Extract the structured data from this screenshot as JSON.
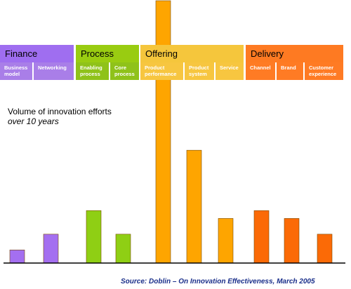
{
  "chart_data": {
    "type": "bar",
    "groups": [
      {
        "name": "Finance",
        "color": "#9f6ef0",
        "subcolor": "#a97ee8",
        "categories": [
          {
            "label": "Business model",
            "value": 5
          },
          {
            "label": "Networking",
            "value": 11
          }
        ]
      },
      {
        "name": "Process",
        "color": "#99cc11",
        "subcolor": "#8fc21a",
        "categories": [
          {
            "label": "Enabling process",
            "value": 20
          },
          {
            "label": "Core process",
            "value": 11
          }
        ]
      },
      {
        "name": "Offering",
        "color": "#f5c63c",
        "subcolor": "#f7c640",
        "categories": [
          {
            "label": "Product performance",
            "value": 100
          },
          {
            "label": "Product system",
            "value": 43
          },
          {
            "label": "Service",
            "value": 17
          }
        ]
      },
      {
        "name": "Delivery",
        "color": "#fe7a22",
        "subcolor": "#ff7b24",
        "categories": [
          {
            "label": "Channel",
            "value": 20
          },
          {
            "label": "Brand",
            "value": 17
          },
          {
            "label": "Customer experience",
            "value": 11
          }
        ]
      }
    ],
    "bar_colors": [
      "#a46ff0",
      "#a46ff0",
      "#8fcf14",
      "#8fcf14",
      "#fea500",
      "#fea500",
      "#fea500",
      "#fb6a06",
      "#fb6a06",
      "#fb6a06"
    ],
    "ylim": [
      0,
      100
    ],
    "title": "Volume of innovation efforts",
    "subtitle": "over 10 years"
  },
  "source": "Source:  Doblin – On Innovation Effectiveness, March 2005"
}
